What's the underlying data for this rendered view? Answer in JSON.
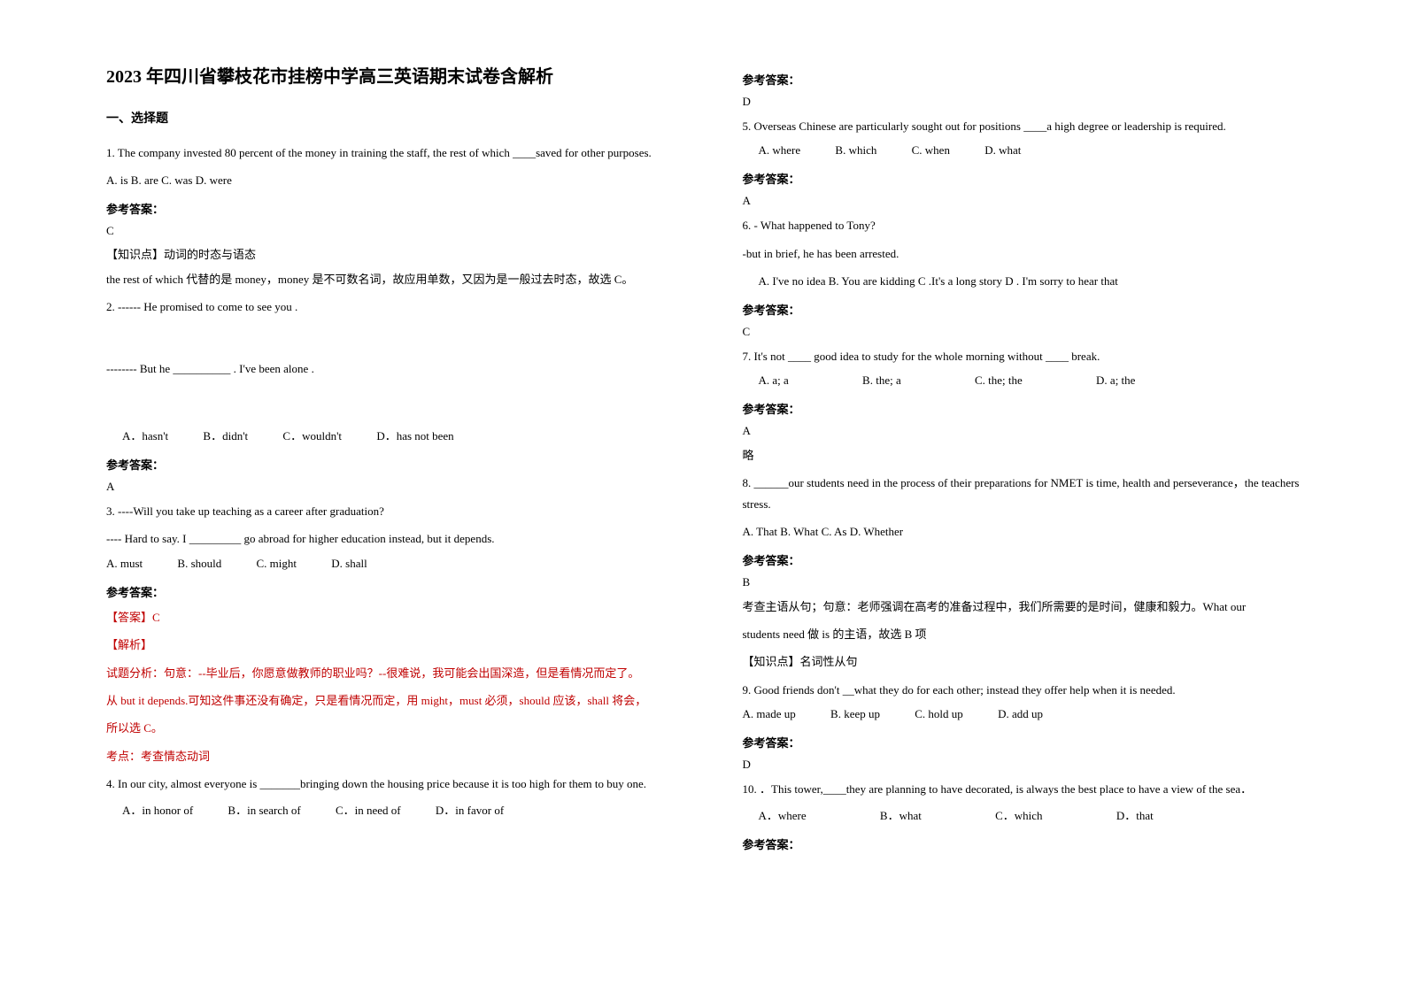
{
  "title": "2023 年四川省攀枝花市挂榜中学高三英语期末试卷含解析",
  "section1": "一、选择题",
  "answer_label": "参考答案：",
  "q1": {
    "stem": "1. The company invested 80 percent of the money in training the staff, the rest of which ____saved for other purposes.",
    "opts": "A. is   B. are   C. was   D. were",
    "key": "C",
    "tag": "【知识点】动词的时态与语态",
    "explain": "the rest of which 代替的是 money，money 是不可数名词，故应用单数，又因为是一般过去时态，故选 C。"
  },
  "q2": {
    "stem1": "2. ------ He promised to come to see you .",
    "stem2": "-------- But he __________ . I've been alone .",
    "a": "A．hasn't",
    "b": "B．didn't",
    "c": "C．wouldn't",
    "d": "D．has not been",
    "key": "A"
  },
  "q3": {
    "stem1": "3. ----Will you take up teaching as a career after graduation?",
    "stem2": "---- Hard to say. I _________ go abroad for higher education instead, but it depends.",
    "a": "A. must",
    "b": "B. should",
    "c": "C. might",
    "d": "D. shall",
    "ans_tag": "【答案】C",
    "exp_tag": "【解析】",
    "line1": "试题分析：句意：--毕业后，你愿意做教师的职业吗？--很难说，我可能会出国深造，但是看情况而定了。",
    "line2": "从 but it depends.可知这件事还没有确定，只是看情况而定，用 might，must 必须，should 应该，shall 将会，",
    "line3": "所以选 C。",
    "line4": "考点：考查情态动词"
  },
  "q4": {
    "stem": "4. In our city, almost everyone is _______bringing down the housing price because it is too high for them to buy one.",
    "a": "A．in honor of",
    "b": "B．in search of",
    "c": "C．in need of",
    "d": "D．in favor of"
  },
  "q4_key": "D",
  "q5": {
    "stem": "5. Overseas Chinese are particularly sought out for positions ____a high degree or leadership is required.",
    "a": "A. where",
    "b": "B. which",
    "c": "C. when",
    "d": "D. what",
    "key": "A"
  },
  "q6": {
    "l1": "6. - What happened to Tony?",
    "l2": "-but in brief, he has been arrested.",
    "opts": "A. I've no idea       B. You are kidding    C .It's a long story   D . I'm sorry to hear that",
    "key": "C"
  },
  "q7": {
    "stem": "7. It's not ____ good idea to study for the whole morning without ____ break.",
    "a": "A. a; a",
    "b": "B. the; a",
    "c": "C. the; the",
    "d": "D. a; the",
    "key": "A",
    "extra": "略"
  },
  "q8": {
    "stem": "8. ______our students need in the process of their preparations for NMET is time, health and perseverance，the teachers stress.",
    "opts": "A. That   B. What   C. As   D. Whether",
    "key": "B",
    "line1": "考查主语从句；句意：老师强调在高考的准备过程中，我们所需要的是时间，健康和毅力。What our",
    "line2": "students need 做 is 的主语，故选 B 项",
    "tag": "【知识点】名词性从句"
  },
  "q9": {
    "stem": "9. Good friends don't __what they do for each other; instead they offer help when it is needed.",
    "a": "A. made up",
    "b": "B. keep up",
    "c": "C. hold up",
    "d": "D. add up",
    "key": "D"
  },
  "q10": {
    "stem": "10. ．This tower,____they are planning to have decorated, is always the best place to have a view of the sea．",
    "a": "A．where",
    "b": "B．what",
    "c": "C．which",
    "d": "D．that"
  }
}
